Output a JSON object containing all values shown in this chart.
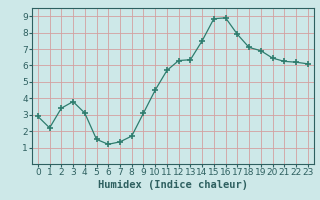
{
  "x": [
    0,
    1,
    2,
    3,
    4,
    5,
    6,
    7,
    8,
    9,
    10,
    11,
    12,
    13,
    14,
    15,
    16,
    17,
    18,
    19,
    20,
    21,
    22,
    23
  ],
  "y": [
    2.9,
    2.2,
    3.4,
    3.8,
    3.1,
    1.5,
    1.2,
    1.35,
    1.7,
    3.1,
    4.5,
    5.7,
    6.3,
    6.35,
    7.5,
    8.85,
    8.9,
    7.9,
    7.1,
    6.9,
    6.45,
    6.25,
    6.2,
    6.1
  ],
  "line_color": "#2e7d6e",
  "marker": "+",
  "marker_size": 4,
  "bg_color": "#cde8e8",
  "grid_color": "#d4a0a0",
  "xlabel": "Humidex (Indice chaleur)",
  "xlim": [
    -0.5,
    23.5
  ],
  "ylim": [
    0.0,
    9.5
  ],
  "yticks": [
    1,
    2,
    3,
    4,
    5,
    6,
    7,
    8,
    9
  ],
  "xticks": [
    0,
    1,
    2,
    3,
    4,
    5,
    6,
    7,
    8,
    9,
    10,
    11,
    12,
    13,
    14,
    15,
    16,
    17,
    18,
    19,
    20,
    21,
    22,
    23
  ],
  "xlabel_fontsize": 7.5,
  "tick_fontsize": 6.5,
  "tick_color": "#2e6060",
  "spine_color": "#2e6060"
}
